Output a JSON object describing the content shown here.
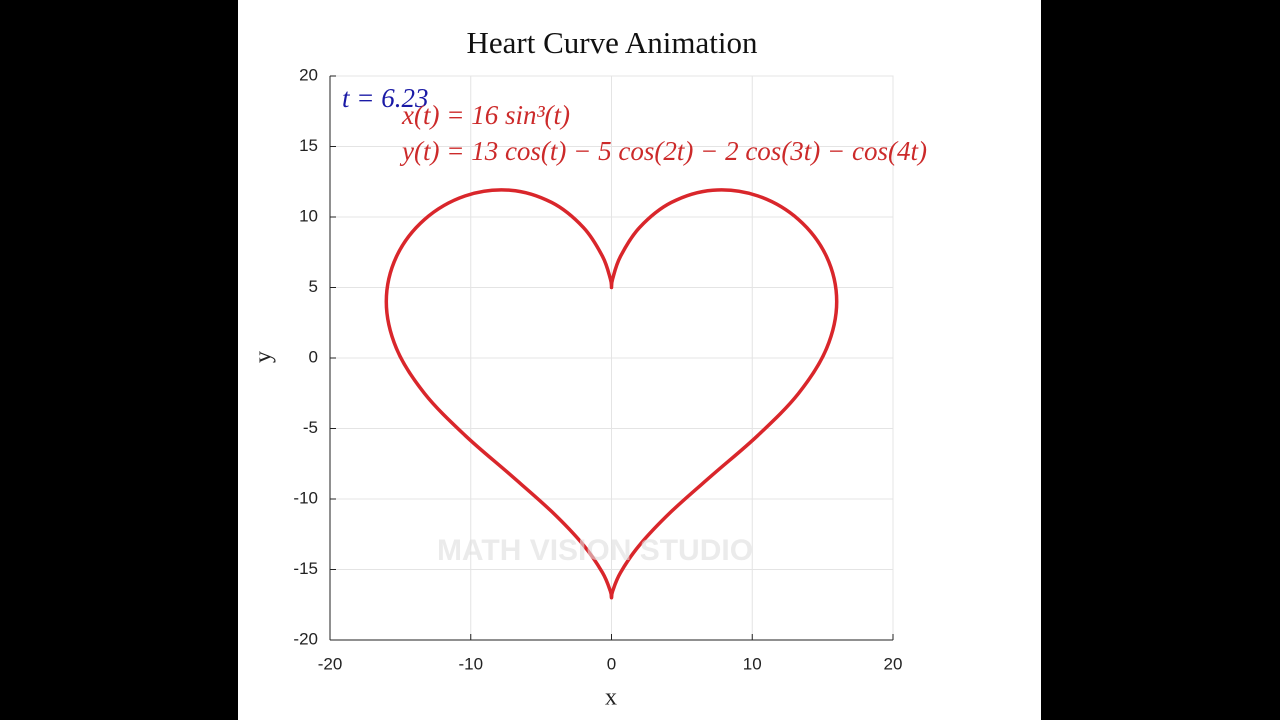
{
  "chart_data": {
    "type": "line",
    "title": "Heart Curve Animation",
    "xlabel": "x",
    "ylabel": "y",
    "annotations": [
      "t = 6.23",
      "x(t) = 16 sin³(t)",
      "y(t) = 13 cos(t) − 5 cos(2t) − 2 cos(3t) − cos(4t)"
    ],
    "watermark": "MATH VISION STUDIO",
    "x": [
      0,
      0.08,
      0.64,
      2,
      4.25,
      7.19,
      10.39,
      13.28,
      15.28,
      16,
      15.28,
      13.28,
      10.39,
      7.19,
      4.25,
      2,
      0.64,
      0.08,
      0,
      -0.08,
      -0.64,
      -2,
      -4.25,
      -7.19,
      -10.39,
      -13.28,
      -15.28,
      -16,
      -15.28,
      -13.28,
      -10.39,
      -7.19,
      -4.25,
      -2,
      -0.64,
      -0.08,
      0
    ],
    "series": [
      {
        "color": "#d9262b",
        "values": [
          5,
          5.61,
          7.21,
          9.26,
          11.03,
          11.9,
          11.5,
          9.83,
          7.19,
          4,
          0.68,
          -2.52,
          -5.5,
          -8.28,
          -10.89,
          -13.26,
          -15.22,
          -16.54,
          -17,
          -16.54,
          -15.22,
          -13.26,
          -10.89,
          -8.28,
          -5.5,
          -2.52,
          0.68,
          4,
          7.19,
          9.83,
          11.5,
          11.9,
          11.03,
          9.26,
          7.21,
          5.61,
          5.06
        ]
      }
    ],
    "xlim": [
      -20,
      20
    ],
    "ylim": [
      -20,
      20
    ],
    "xticks": [
      -20,
      -10,
      0,
      10,
      20
    ],
    "yticks": [
      -20,
      -15,
      -10,
      -5,
      0,
      5,
      10,
      15,
      20
    ],
    "grid": true
  }
}
